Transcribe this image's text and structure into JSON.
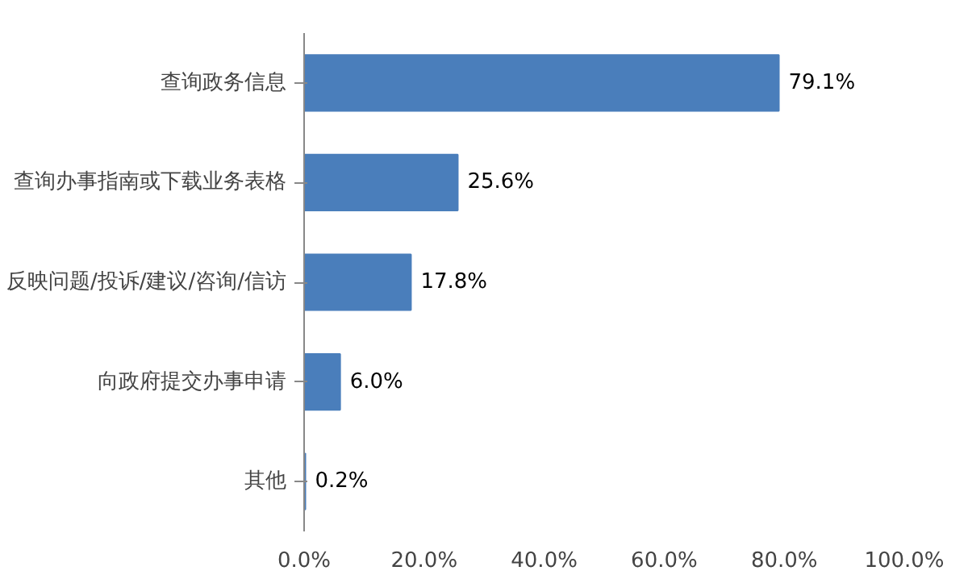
{
  "chart_data": {
    "type": "bar",
    "orientation": "horizontal",
    "categories": [
      "查询政务信息",
      "查询办事指南或下载业务表格",
      "反映问题/投诉/建议/咨询/信访",
      "向政府提交办事申请",
      "其他"
    ],
    "values": [
      79.1,
      25.6,
      17.8,
      6.0,
      0.2
    ],
    "value_labels": [
      "79.1%",
      "25.6%",
      "17.8%",
      "6.0%",
      "0.2%"
    ],
    "color": "#4a7ebb",
    "xlim": [
      0,
      100
    ],
    "xticks": [
      {
        "value": 0,
        "label": "0.0%"
      },
      {
        "value": 20,
        "label": "20.0%"
      },
      {
        "value": 40,
        "label": "40.0%"
      },
      {
        "value": 60,
        "label": "60.0%"
      },
      {
        "value": 80,
        "label": "80.0%"
      },
      {
        "value": 100,
        "label": "100.0%"
      }
    ],
    "grid": false
  }
}
